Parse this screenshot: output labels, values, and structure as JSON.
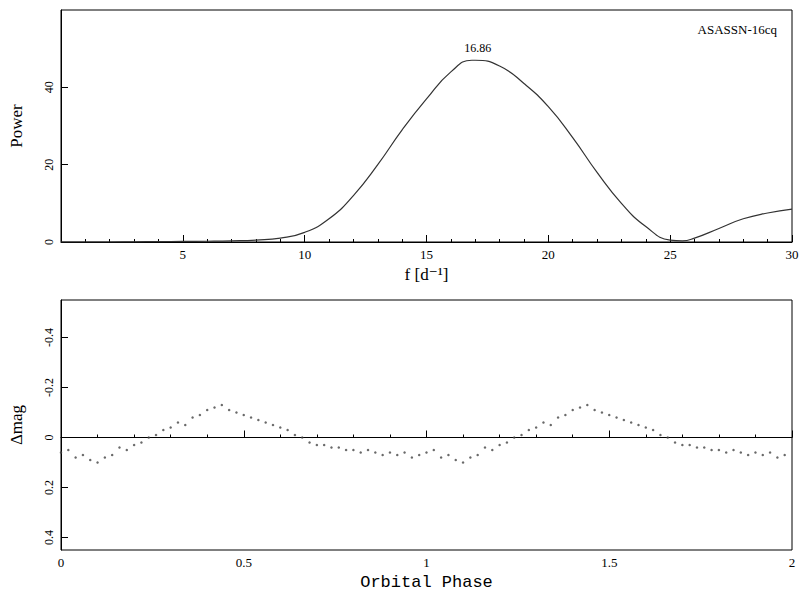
{
  "chart_data": [
    {
      "type": "line",
      "title": "ASASSN-16cq",
      "x_label": "f [d⁻¹]",
      "y_label": "Power",
      "x": [
        0,
        1,
        2,
        3,
        4,
        5,
        6,
        7,
        8,
        9,
        10,
        11,
        12,
        13,
        14,
        15,
        16,
        16.86,
        17,
        18,
        19,
        20,
        21,
        22,
        23,
        24,
        25,
        25.5,
        26,
        27,
        28,
        29,
        30
      ],
      "values": [
        0,
        0,
        0,
        0.05,
        0.1,
        0.15,
        0.2,
        0.3,
        0.5,
        1,
        2.5,
        6,
        12,
        20,
        29,
        37,
        44,
        47,
        47,
        45.5,
        41,
        35,
        27,
        18,
        10,
        4,
        0.5,
        0.3,
        1,
        3.5,
        6,
        7.5,
        8.5
      ],
      "color": "#333333",
      "line_style": "solid",
      "grid": false,
      "xlim": [
        0,
        30
      ],
      "xticks": [
        5,
        10,
        15,
        20,
        25,
        30
      ],
      "ylim": [
        0,
        60
      ],
      "yticks": [
        0,
        20,
        40
      ],
      "annotations": [
        {
          "text": "16.86",
          "x": 16.86,
          "y": 47
        }
      ]
    },
    {
      "type": "scatter",
      "x_label": "Orbital Phase",
      "y_label": "Δmag",
      "x": [
        0.0,
        0.02,
        0.04,
        0.06,
        0.08,
        0.1,
        0.12,
        0.14,
        0.16,
        0.18,
        0.2,
        0.22,
        0.24,
        0.26,
        0.28,
        0.3,
        0.32,
        0.34,
        0.36,
        0.38,
        0.4,
        0.42,
        0.44,
        0.46,
        0.48,
        0.5,
        0.52,
        0.54,
        0.56,
        0.58,
        0.6,
        0.62,
        0.64,
        0.66,
        0.68,
        0.7,
        0.72,
        0.74,
        0.76,
        0.78,
        0.8,
        0.82,
        0.84,
        0.86,
        0.88,
        0.9,
        0.92,
        0.94,
        0.96,
        0.98,
        1.0,
        1.02,
        1.04,
        1.06,
        1.08,
        1.1,
        1.12,
        1.14,
        1.16,
        1.18,
        1.2,
        1.22,
        1.24,
        1.26,
        1.28,
        1.3,
        1.32,
        1.34,
        1.36,
        1.38,
        1.4,
        1.42,
        1.44,
        1.46,
        1.48,
        1.5,
        1.52,
        1.54,
        1.56,
        1.58,
        1.6,
        1.62,
        1.64,
        1.66,
        1.68,
        1.7,
        1.72,
        1.74,
        1.76,
        1.78,
        1.8,
        1.82,
        1.84,
        1.86,
        1.88,
        1.9,
        1.92,
        1.94,
        1.96,
        1.98
      ],
      "values": [
        0.06,
        0.05,
        0.08,
        0.07,
        0.09,
        0.1,
        0.08,
        0.07,
        0.04,
        0.05,
        0.03,
        0.02,
        0.0,
        -0.01,
        -0.03,
        -0.04,
        -0.06,
        -0.05,
        -0.08,
        -0.09,
        -0.11,
        -0.12,
        -0.13,
        -0.11,
        -0.1,
        -0.09,
        -0.08,
        -0.07,
        -0.06,
        -0.05,
        -0.04,
        -0.03,
        -0.01,
        0.0,
        0.02,
        0.03,
        0.03,
        0.04,
        0.04,
        0.05,
        0.05,
        0.06,
        0.05,
        0.06,
        0.07,
        0.06,
        0.07,
        0.06,
        0.08,
        0.07,
        0.06,
        0.05,
        0.08,
        0.07,
        0.09,
        0.1,
        0.08,
        0.07,
        0.04,
        0.05,
        0.03,
        0.02,
        0.0,
        -0.01,
        -0.03,
        -0.04,
        -0.06,
        -0.05,
        -0.08,
        -0.09,
        -0.11,
        -0.12,
        -0.13,
        -0.11,
        -0.1,
        -0.09,
        -0.08,
        -0.07,
        -0.06,
        -0.05,
        -0.04,
        -0.03,
        -0.01,
        0.0,
        0.02,
        0.03,
        0.03,
        0.04,
        0.04,
        0.05,
        0.05,
        0.06,
        0.05,
        0.06,
        0.07,
        0.06,
        0.07,
        0.06,
        0.08,
        0.07
      ],
      "color": "#444444",
      "marker": "circle",
      "grid": false,
      "xlim": [
        0,
        2
      ],
      "xticks": [
        0,
        0.5,
        1,
        1.5,
        2
      ],
      "ylim": [
        0.45,
        -0.55
      ],
      "yticks": [
        -0.4,
        -0.2,
        0,
        0.2,
        0.4
      ]
    }
  ]
}
